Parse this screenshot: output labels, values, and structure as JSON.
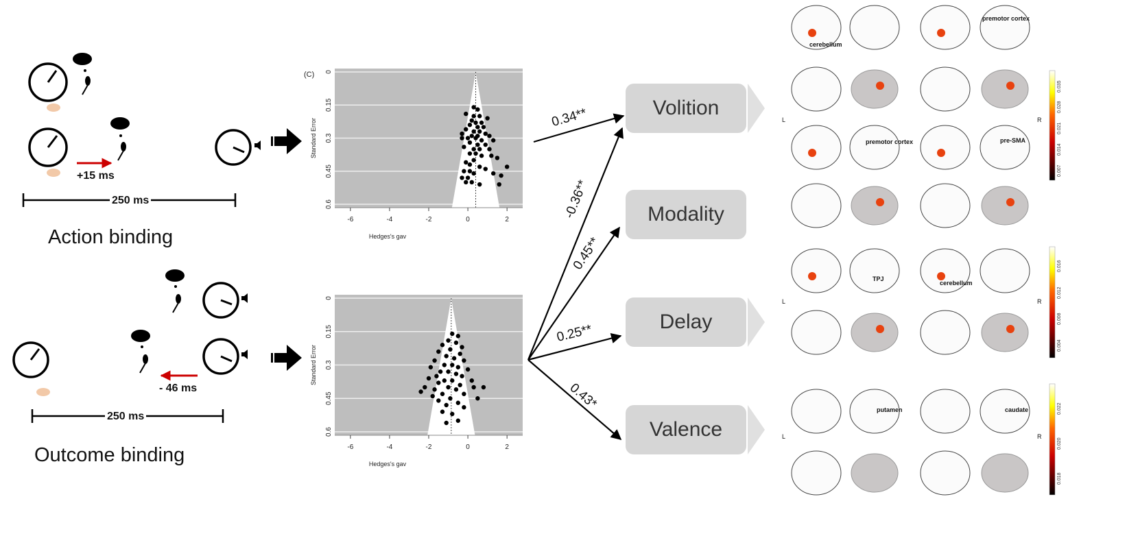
{
  "left": {
    "action_shift": "+15 ms",
    "action_interval": "250 ms",
    "action_title": "Action binding",
    "outcome_shift": "- 46 ms",
    "outcome_interval": "250 ms",
    "outcome_title": "Outcome binding"
  },
  "chart_data": [
    {
      "type": "scatter",
      "panel_label": "(C)",
      "xlabel": "Hedges's gav",
      "ylabel": "Standard Error",
      "xticks": [
        "-6",
        "-4",
        "-2",
        "0",
        "2"
      ],
      "yticks": [
        "0",
        "0.15",
        "0.3",
        "0.45",
        "0.6"
      ],
      "xlim": [
        -6.8,
        2.8
      ],
      "ylim": [
        0.62,
        0
      ],
      "center": 0.4,
      "points": [
        [
          0.3,
          0.16
        ],
        [
          0.5,
          0.17
        ],
        [
          -0.1,
          0.19
        ],
        [
          0.3,
          0.2
        ],
        [
          0.6,
          0.2
        ],
        [
          1.0,
          0.21
        ],
        [
          0.2,
          0.22
        ],
        [
          0.4,
          0.23
        ],
        [
          0.7,
          0.23
        ],
        [
          0.1,
          0.24
        ],
        [
          0.5,
          0.25
        ],
        [
          0.8,
          0.25
        ],
        [
          -0.1,
          0.26
        ],
        [
          0.3,
          0.27
        ],
        [
          0.6,
          0.27
        ],
        [
          0.9,
          0.28
        ],
        [
          -0.3,
          0.28
        ],
        [
          0.2,
          0.29
        ],
        [
          0.5,
          0.29
        ],
        [
          1.1,
          0.29
        ],
        [
          0.0,
          0.3
        ],
        [
          0.4,
          0.3
        ],
        [
          0.7,
          0.31
        ],
        [
          1.3,
          0.31
        ],
        [
          -0.3,
          0.3
        ],
        [
          0.1,
          0.32
        ],
        [
          0.5,
          0.33
        ],
        [
          0.9,
          0.33
        ],
        [
          -0.2,
          0.34
        ],
        [
          0.3,
          0.35
        ],
        [
          0.6,
          0.35
        ],
        [
          1.1,
          0.35
        ],
        [
          0.1,
          0.37
        ],
        [
          0.4,
          0.37
        ],
        [
          0.7,
          0.38
        ],
        [
          1.2,
          0.38
        ],
        [
          1.5,
          0.39
        ],
        [
          0.3,
          0.4
        ],
        [
          -0.1,
          0.41
        ],
        [
          0.1,
          0.42
        ],
        [
          0.6,
          0.43
        ],
        [
          0.9,
          0.44
        ],
        [
          2.0,
          0.43
        ],
        [
          -0.2,
          0.45
        ],
        [
          0.1,
          0.45
        ],
        [
          0.3,
          0.46
        ],
        [
          1.3,
          0.46
        ],
        [
          1.7,
          0.47
        ],
        [
          -0.3,
          0.48
        ],
        [
          0.0,
          0.48
        ],
        [
          0.2,
          0.5
        ],
        [
          0.6,
          0.51
        ],
        [
          1.6,
          0.51
        ],
        [
          -0.1,
          0.5
        ]
      ]
    },
    {
      "type": "scatter",
      "xlabel": "Hedges's gav",
      "ylabel": "Standard Error",
      "xticks": [
        "-6",
        "-4",
        "-2",
        "0",
        "2"
      ],
      "yticks": [
        "0",
        "0.15",
        "0.3",
        "0.45",
        "0.6"
      ],
      "xlim": [
        -6.8,
        2.8
      ],
      "ylim": [
        0.62,
        0
      ],
      "center": -0.85,
      "points": [
        [
          -0.8,
          0.16
        ],
        [
          -0.5,
          0.17
        ],
        [
          -1.0,
          0.19
        ],
        [
          -0.6,
          0.2
        ],
        [
          -1.3,
          0.21
        ],
        [
          -0.3,
          0.22
        ],
        [
          -0.9,
          0.23
        ],
        [
          -1.5,
          0.24
        ],
        [
          -0.4,
          0.25
        ],
        [
          -1.1,
          0.26
        ],
        [
          -0.7,
          0.27
        ],
        [
          -1.7,
          0.28
        ],
        [
          -0.2,
          0.28
        ],
        [
          -1.2,
          0.3
        ],
        [
          -0.8,
          0.3
        ],
        [
          -1.9,
          0.31
        ],
        [
          -0.5,
          0.31
        ],
        [
          0.0,
          0.32
        ],
        [
          -1.4,
          0.33
        ],
        [
          -1.0,
          0.33
        ],
        [
          -0.6,
          0.34
        ],
        [
          -1.6,
          0.35
        ],
        [
          -0.3,
          0.35
        ],
        [
          -2.0,
          0.36
        ],
        [
          -1.2,
          0.37
        ],
        [
          -0.8,
          0.37
        ],
        [
          0.2,
          0.37
        ],
        [
          -1.5,
          0.38
        ],
        [
          -0.4,
          0.39
        ],
        [
          -1.0,
          0.4
        ],
        [
          -2.2,
          0.4
        ],
        [
          0.3,
          0.4
        ],
        [
          -1.7,
          0.41
        ],
        [
          -0.6,
          0.41
        ],
        [
          0.8,
          0.4
        ],
        [
          -2.4,
          0.42
        ],
        [
          -1.3,
          0.43
        ],
        [
          -0.2,
          0.43
        ],
        [
          -1.8,
          0.44
        ],
        [
          -0.9,
          0.45
        ],
        [
          0.5,
          0.45
        ],
        [
          -1.5,
          0.46
        ],
        [
          -0.5,
          0.47
        ],
        [
          -1.1,
          0.48
        ],
        [
          -0.2,
          0.49
        ],
        [
          -1.3,
          0.51
        ],
        [
          -0.8,
          0.52
        ],
        [
          -0.5,
          0.55
        ],
        [
          -1.1,
          0.56
        ]
      ]
    }
  ],
  "factors": [
    "Volition",
    "Modality",
    "Delay",
    "Valence"
  ],
  "coefficients": {
    "volition_action": "0.34**",
    "volition_outcome": "-0.36**",
    "modality": "0.45**",
    "delay": "0.25**",
    "valence": "0.43*"
  },
  "brain": {
    "labels": [
      "cerebellum",
      "premotor cortex",
      "premotor cortex",
      "pre-SMA",
      "TPJ",
      "cerebellum",
      "putamen",
      "caudate"
    ],
    "side_left": "L",
    "side_right": "R",
    "colorbars": [
      {
        "ticks": [
          "0.007",
          "0.014",
          "0.021",
          "0.028",
          "0.035"
        ]
      },
      {
        "ticks": [
          "0.004",
          "0.008",
          "0.012",
          "0.016"
        ]
      },
      {
        "ticks": [
          "0.018",
          "0.020",
          "0.022"
        ]
      }
    ]
  }
}
